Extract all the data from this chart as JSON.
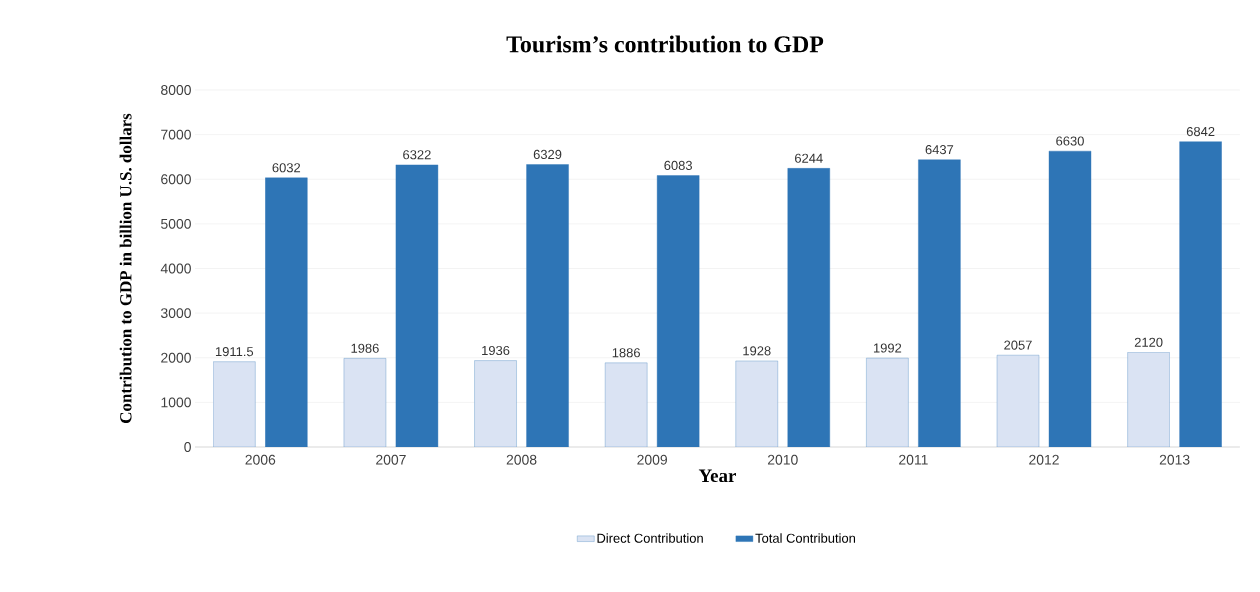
{
  "chart_data": {
    "type": "bar",
    "title": "Tourism’s contribution to GDP",
    "xlabel": "Year",
    "ylabel": "Contribution to GDP in billion U.S. dollars",
    "categories": [
      "2006",
      "2007",
      "2008",
      "2009",
      "2010",
      "2011",
      "2012",
      "2013"
    ],
    "series": [
      {
        "name": "Direct Contribution",
        "color": "#dae3f3",
        "values": [
          1911.5,
          1986,
          1936,
          1886,
          1928,
          1992,
          2057,
          2120
        ]
      },
      {
        "name": "Total Contribution",
        "color": "#2e75b6",
        "values": [
          6032,
          6322,
          6329,
          6083,
          6244,
          6437,
          6630,
          6842
        ]
      }
    ],
    "ylim": [
      0,
      8000
    ],
    "yticks": [
      0,
      1000,
      2000,
      3000,
      4000,
      5000,
      6000,
      7000,
      8000
    ],
    "grid": "y",
    "legend": "bottom",
    "data_labels": true
  }
}
